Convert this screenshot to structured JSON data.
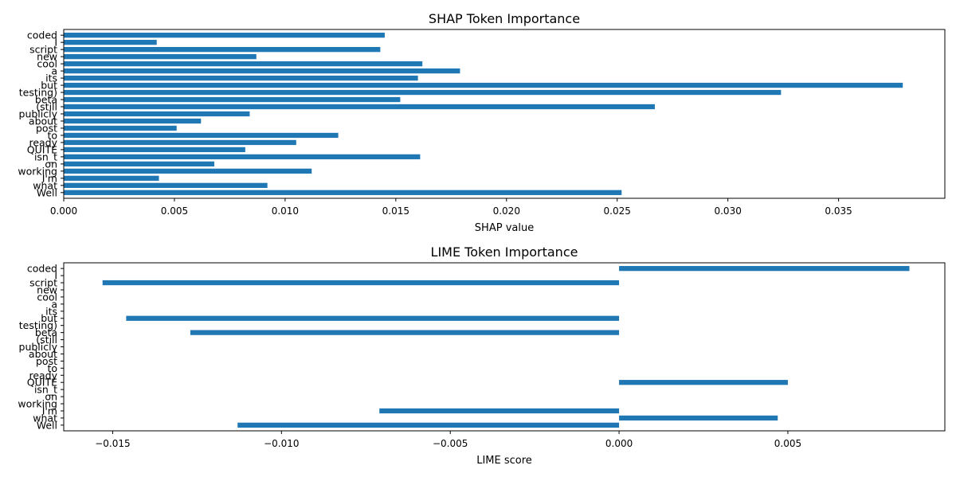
{
  "chart_data": [
    {
      "type": "bar",
      "orientation": "horizontal",
      "title": "SHAP Token Importance",
      "xlabel": "SHAP value",
      "ylabel": "",
      "categories": [
        "Well",
        "what",
        "I'm",
        "working",
        "on",
        "isn_t",
        "QUITE",
        "ready",
        "to",
        "post",
        "about",
        "publicly",
        "(still",
        "beta",
        "testing)",
        "but",
        "its",
        "a",
        "cool",
        "new",
        "script",
        "I",
        "coded"
      ],
      "values": [
        0.0252,
        0.0092,
        0.0043,
        0.0112,
        0.0068,
        0.0161,
        0.0082,
        0.0105,
        0.0124,
        0.0051,
        0.0062,
        0.0084,
        0.0267,
        0.0152,
        0.0324,
        0.0379,
        0.016,
        0.0179,
        0.0162,
        0.0087,
        0.0143,
        0.0042,
        0.0145
      ],
      "xlim": [
        0,
        0.0398
      ],
      "xticks": [
        0.0,
        0.005,
        0.01,
        0.015,
        0.02,
        0.025,
        0.03,
        0.035
      ],
      "xtick_labels": [
        "0.000",
        "0.005",
        "0.010",
        "0.015",
        "0.020",
        "0.025",
        "0.030",
        "0.035"
      ],
      "color": "#1f77b4",
      "grid": false
    },
    {
      "type": "bar",
      "orientation": "horizontal",
      "title": "LIME Token Importance",
      "xlabel": "LIME score",
      "ylabel": "",
      "categories": [
        "Well",
        "what",
        "I'm",
        "working",
        "on",
        "isn_t",
        "QUITE",
        "ready",
        "to",
        "post",
        "about",
        "publicly",
        "(still",
        "beta",
        "testing)",
        "but",
        "its",
        "a",
        "cool",
        "new",
        "script",
        "I",
        "coded"
      ],
      "values": [
        -0.0113,
        0.0047,
        -0.0071,
        0,
        0,
        0,
        0.005,
        0,
        0,
        0,
        0,
        0,
        0,
        -0.0127,
        0,
        -0.0146,
        0,
        0,
        0,
        0,
        -0.0153,
        0,
        0.0086
      ],
      "xlim": [
        -0.01645,
        0.00965
      ],
      "xticks": [
        -0.015,
        -0.01,
        -0.005,
        0.0,
        0.005
      ],
      "xtick_labels": [
        "−0.015",
        "−0.010",
        "−0.005",
        "0.000",
        "0.005"
      ],
      "color": "#1f77b4",
      "grid": false
    }
  ]
}
